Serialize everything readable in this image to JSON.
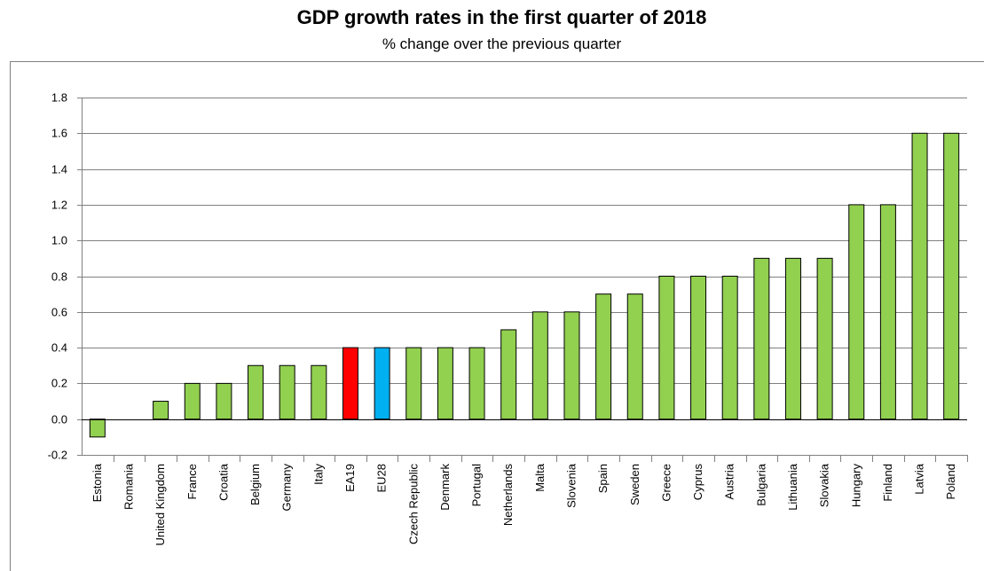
{
  "title": "GDP growth rates in the first quarter of 2018",
  "subtitle": "% change over the previous quarter",
  "colors": {
    "default_bar": "#92d050",
    "highlight_EA19": "#ff0000",
    "highlight_EU28": "#00b0f0",
    "bar_stroke": "#000000",
    "grid": "#808080"
  },
  "chart_data": {
    "type": "bar",
    "title": "GDP growth rates in the first quarter of 2018",
    "subtitle": "% change over the previous quarter",
    "categories": [
      "Estonia",
      "Romania",
      "United Kingdom",
      "France",
      "Croatia",
      "Belgium",
      "Germany",
      "Italy",
      "EA19",
      "EU28",
      "Czech Republic",
      "Denmark",
      "Portugal",
      "Netherlands",
      "Malta",
      "Slovenia",
      "Spain",
      "Sweden",
      "Greece",
      "Cyprus",
      "Austria",
      "Bulgaria",
      "Lithuania",
      "Slovakia",
      "Hungary",
      "Finland",
      "Latvia",
      "Poland"
    ],
    "values": [
      -0.1,
      0.0,
      0.1,
      0.2,
      0.2,
      0.3,
      0.3,
      0.3,
      0.4,
      0.4,
      0.4,
      0.4,
      0.4,
      0.5,
      0.6,
      0.6,
      0.7,
      0.7,
      0.8,
      0.8,
      0.8,
      0.9,
      0.9,
      0.9,
      1.2,
      1.2,
      1.6,
      1.6
    ],
    "ylim": [
      -0.2,
      1.8
    ],
    "yticks": [
      "1.8",
      "1.6",
      "1.4",
      "1.2",
      "1.0",
      "0.8",
      "0.6",
      "0.4",
      "0.2",
      "0.0",
      "-0.2"
    ],
    "xlabel": "",
    "ylabel": "",
    "grid": true,
    "legend": "none"
  }
}
